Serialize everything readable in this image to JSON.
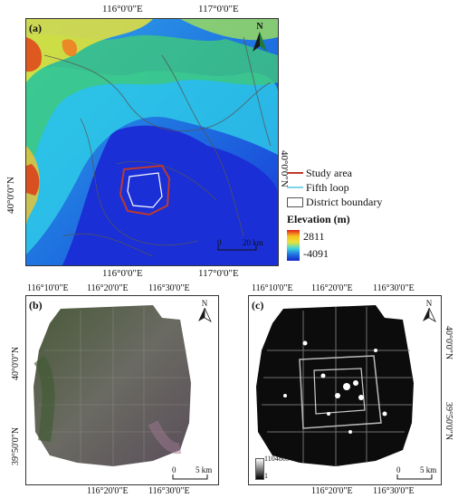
{
  "panel_a": {
    "label": "(a)",
    "north": "N",
    "top_ticks": [
      "116°0'0\"E",
      "117°0'0\"E"
    ],
    "bottom_ticks": [
      "116°0'0\"E",
      "117°0'0\"E"
    ],
    "left_tick": "40°0'0\"N",
    "right_tick": "40°0'0\"N",
    "scale": {
      "zero": "0",
      "value": "20 km"
    },
    "legend": {
      "study_area": "Study area",
      "fifth_loop": "Fifth loop",
      "district_boundary": "District boundary",
      "elevation_title": "Elevation (m)",
      "elev_max": "2811",
      "elev_min": "-4091"
    },
    "colors": {
      "study_area": "#c0392b",
      "fifth_loop": "#7fd4e6",
      "district_boundary": "#555555"
    }
  },
  "panel_b": {
    "label": "(b)",
    "north": "N",
    "top_ticks": [
      "116°10'0\"E",
      "116°20'0\"E",
      "116°30'0\"E"
    ],
    "bottom_ticks": [
      "116°20'0\"E",
      "116°30'0\"E"
    ],
    "left_ticks": [
      "40°0'0\"N",
      "39°50'0\"N"
    ],
    "scale": {
      "zero": "0",
      "value": "5 km"
    }
  },
  "panel_c": {
    "label": "(c)",
    "north": "N",
    "top_ticks": [
      "116°10'0\"E",
      "116°20'0\"E",
      "116°30'0\"E"
    ],
    "bottom_ticks": [
      "116°20'0\"E",
      "116°30'0\"E"
    ],
    "right_ticks": [
      "40°0'0\"N",
      "39°50'0\"N"
    ],
    "scale": {
      "zero": "0",
      "value": "5 km"
    },
    "colorbar_max": "1104869",
    "colorbar_min": "1"
  }
}
